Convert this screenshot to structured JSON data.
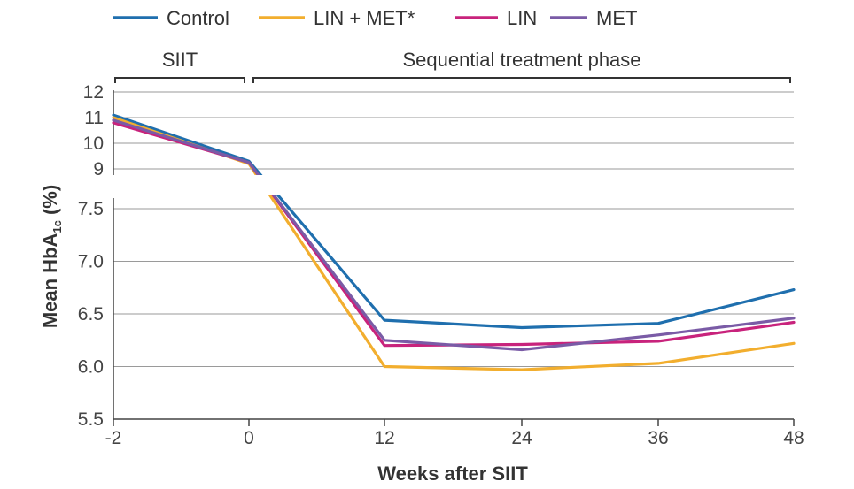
{
  "chart_data": {
    "type": "line",
    "title": "",
    "xlabel": "Weeks after SIIT",
    "ylabel": "Mean HbA",
    "ylabel_subscript": "1c",
    "ylabel_unit": " (%)",
    "x": [
      -2,
      0,
      12,
      24,
      36,
      48
    ],
    "x_tick_labels": [
      "-2",
      "0",
      "12",
      "24",
      "36",
      "48"
    ],
    "y_upper_ticks": [
      "12",
      "11",
      "10",
      "9"
    ],
    "y_lower_ticks": [
      "7.5",
      "7.0",
      "6.5",
      "6.0",
      "5.5"
    ],
    "y_axis_break": true,
    "ylim_upper": [
      9,
      12
    ],
    "ylim_lower": [
      5.5,
      7.7
    ],
    "phases": [
      {
        "label": "SIIT",
        "x_range": [
          -2,
          0
        ]
      },
      {
        "label": "Sequential treatment phase",
        "x_range": [
          0,
          48
        ]
      }
    ],
    "series": [
      {
        "name": "Control",
        "color": "#1f6fae",
        "values": [
          11.1,
          9.3,
          6.44,
          6.37,
          6.41,
          6.73
        ]
      },
      {
        "name": "LIN + MET*",
        "color": "#f2ae2e",
        "values": [
          11.0,
          9.2,
          6.0,
          5.97,
          6.03,
          6.22
        ]
      },
      {
        "name": "LIN",
        "color": "#c8237c",
        "values": [
          10.8,
          9.25,
          6.2,
          6.21,
          6.24,
          6.42
        ]
      },
      {
        "name": "MET",
        "color": "#7a5ba6",
        "values": [
          10.9,
          9.25,
          6.25,
          6.16,
          6.3,
          6.46
        ]
      }
    ]
  }
}
